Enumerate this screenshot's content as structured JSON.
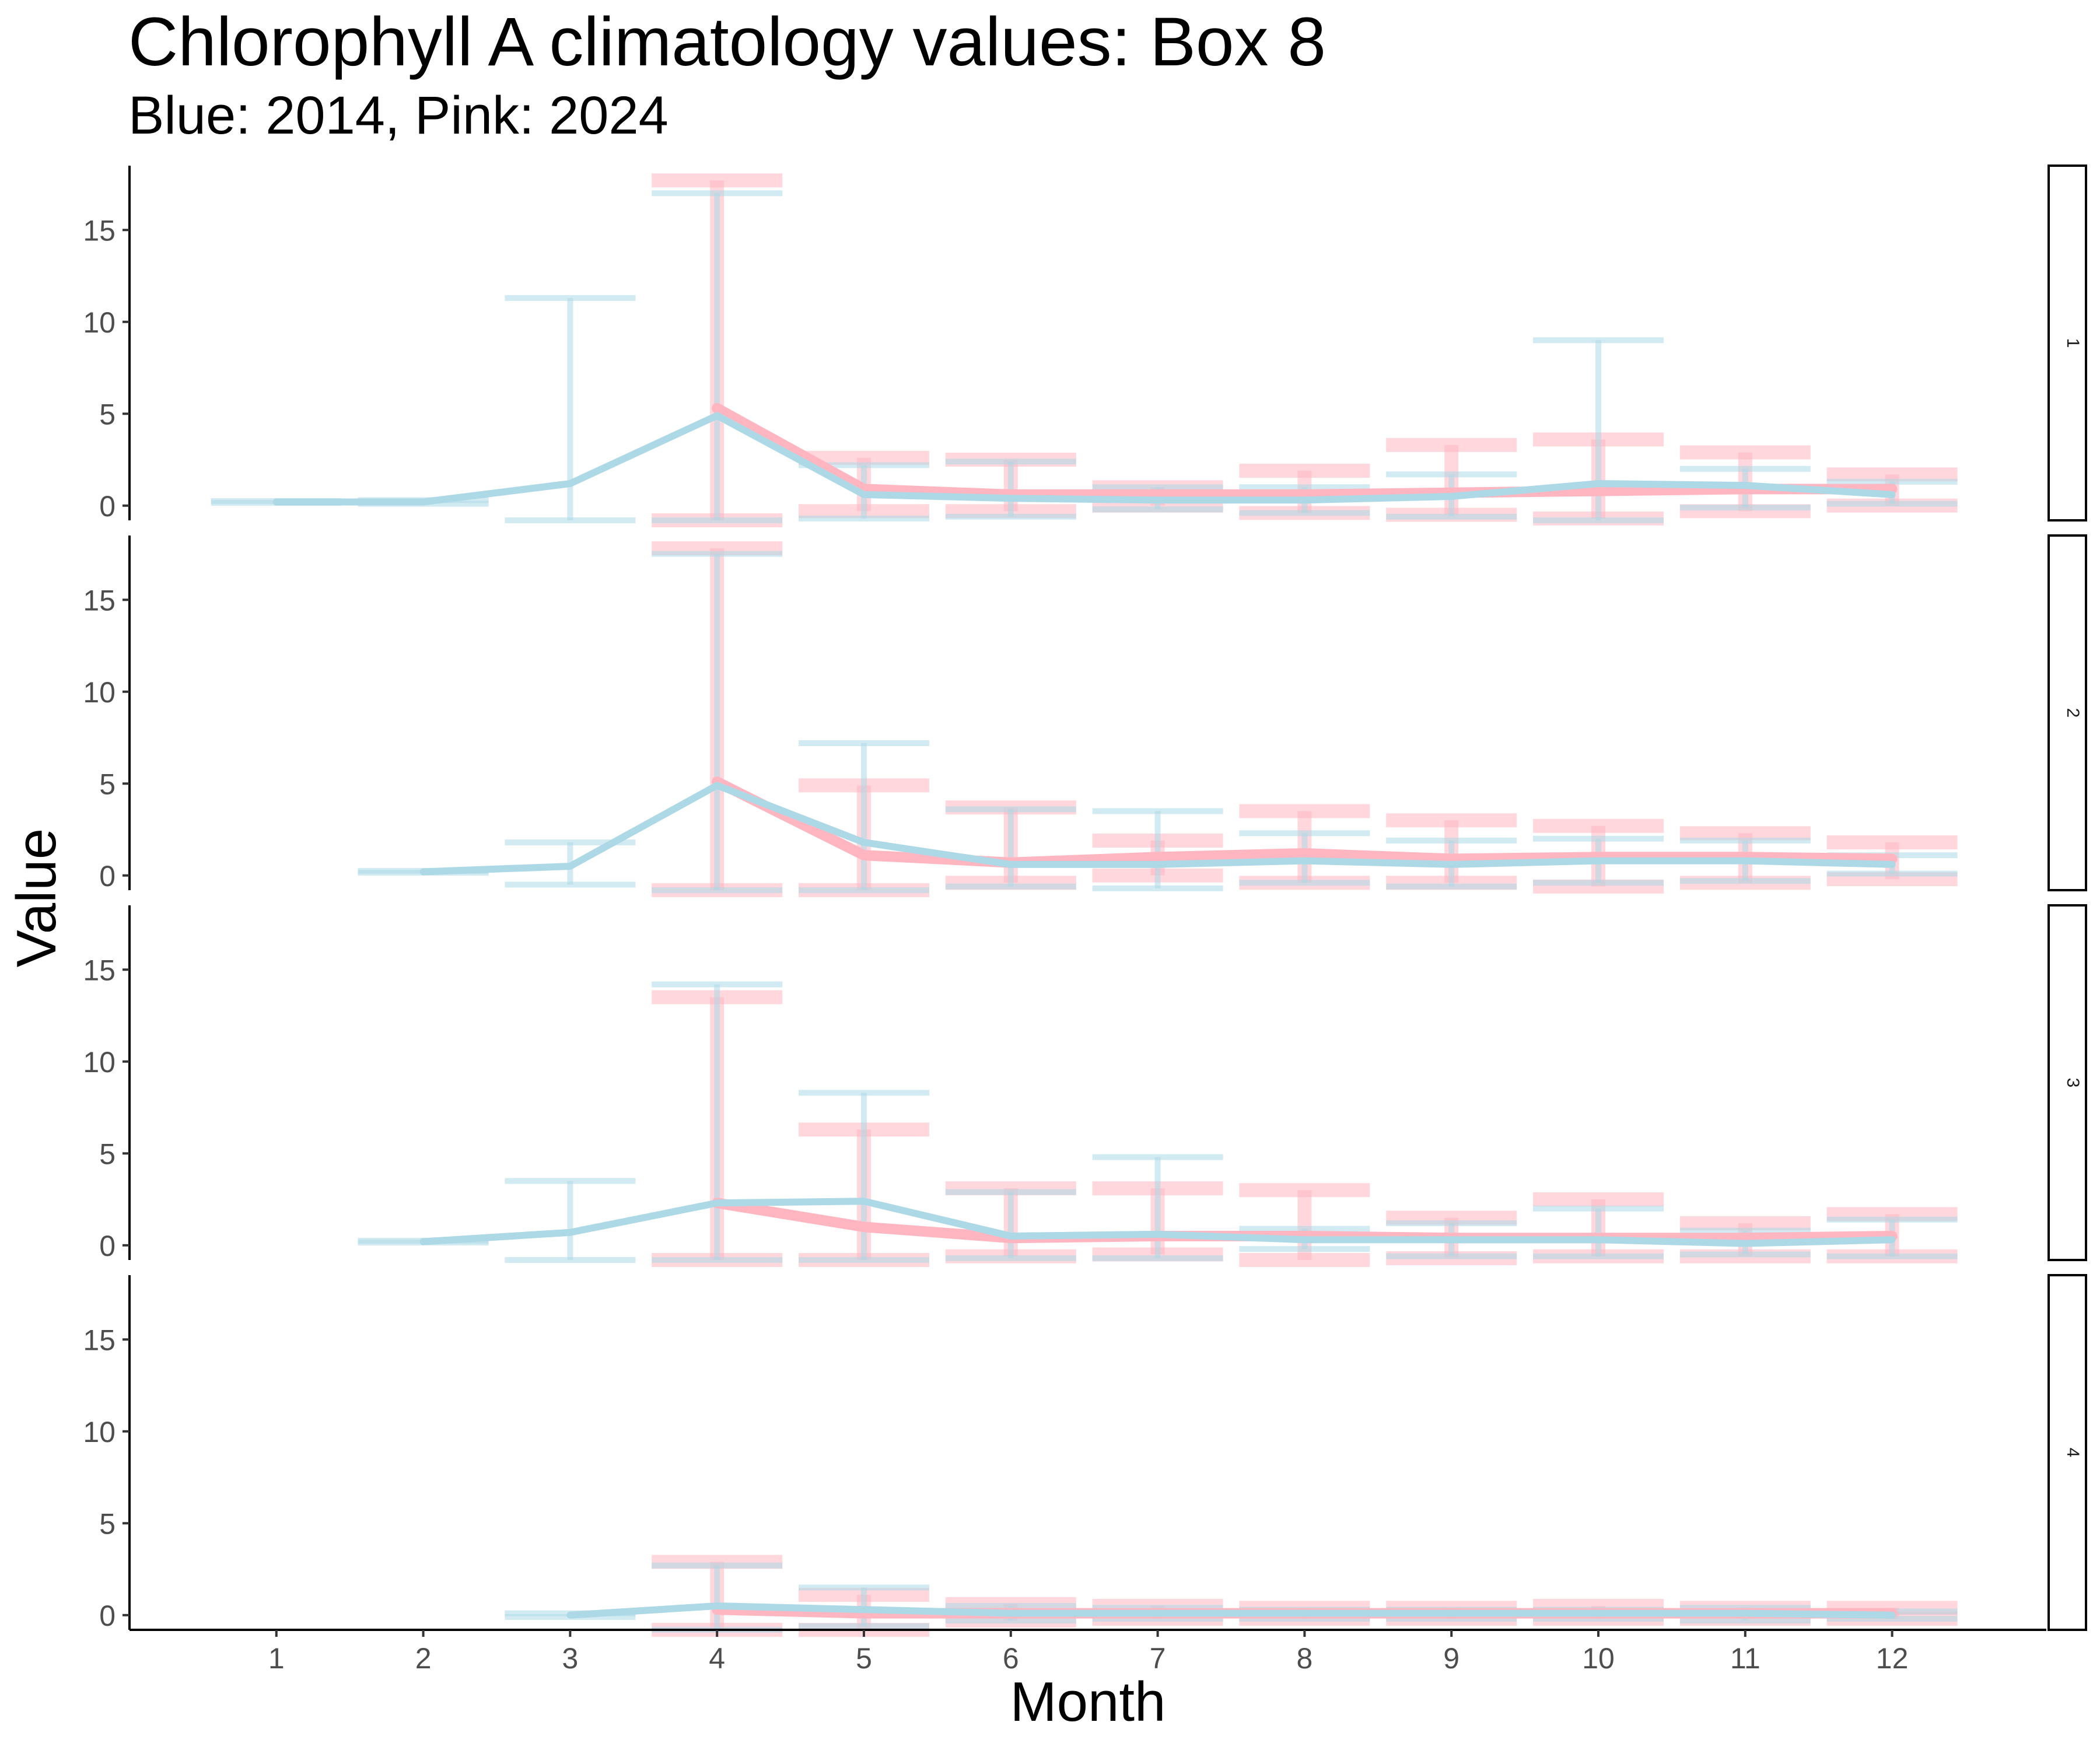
{
  "chart_data": {
    "type": "line",
    "title": "Chlorophyll A climatology values: Box 8",
    "subtitle": "Blue: 2014, Pink: 2024",
    "xlabel": "Month",
    "ylabel": "Value",
    "x": [
      1,
      2,
      3,
      4,
      5,
      6,
      7,
      8,
      9,
      10,
      11,
      12
    ],
    "x_ticks": [
      "1",
      "2",
      "3",
      "4",
      "5",
      "6",
      "7",
      "8",
      "9",
      "10",
      "11",
      "12"
    ],
    "y_ticks": [
      0,
      5,
      10,
      15
    ],
    "ylim": [
      -0.8,
      18.5
    ],
    "colors": {
      "2014": "#ADD8E6",
      "2024": "#FFB6C1"
    },
    "grid": false,
    "legend": "none",
    "facets": [
      {
        "label": "1",
        "series": [
          {
            "name": "2014",
            "points": [
              {
                "x": 1,
                "mean": 0.2,
                "low": 0.15,
                "high": 0.25
              },
              {
                "x": 2,
                "mean": 0.2,
                "low": 0.1,
                "high": 0.3
              },
              {
                "x": 3,
                "mean": 1.2,
                "low": -0.8,
                "high": 11.3
              },
              {
                "x": 4,
                "mean": 4.9,
                "low": -0.8,
                "high": 17.0
              },
              {
                "x": 5,
                "mean": 0.6,
                "low": -0.7,
                "high": 2.2
              },
              {
                "x": 6,
                "mean": 0.4,
                "low": -0.6,
                "high": 2.4
              },
              {
                "x": 7,
                "mean": 0.3,
                "low": -0.2,
                "high": 1.0
              },
              {
                "x": 8,
                "mean": 0.3,
                "low": -0.4,
                "high": 1.0
              },
              {
                "x": 9,
                "mean": 0.5,
                "low": -0.6,
                "high": 1.7
              },
              {
                "x": 10,
                "mean": 1.2,
                "low": -0.8,
                "high": 9.0
              },
              {
                "x": 11,
                "mean": 1.1,
                "low": -0.1,
                "high": 2.0
              },
              {
                "x": 12,
                "mean": 0.6,
                "low": 0.1,
                "high": 1.3
              }
            ]
          },
          {
            "name": "2024",
            "points": [
              {
                "x": 4,
                "mean": 5.3,
                "low": -0.8,
                "high": 17.7
              },
              {
                "x": 5,
                "mean": 0.9,
                "low": -0.3,
                "high": 2.6
              },
              {
                "x": 6,
                "mean": 0.6,
                "low": -0.3,
                "high": 2.5
              },
              {
                "x": 7,
                "mean": 0.6,
                "low": 0.0,
                "high": 1.0
              },
              {
                "x": 8,
                "mean": 0.6,
                "low": -0.4,
                "high": 1.9
              },
              {
                "x": 9,
                "mean": 0.7,
                "low": -0.5,
                "high": 3.3
              },
              {
                "x": 10,
                "mean": 0.8,
                "low": -0.7,
                "high": 3.6
              },
              {
                "x": 11,
                "mean": 0.9,
                "low": -0.3,
                "high": 2.9
              },
              {
                "x": 12,
                "mean": 0.9,
                "low": 0.0,
                "high": 1.7
              }
            ]
          }
        ]
      },
      {
        "label": "2",
        "series": [
          {
            "name": "2014",
            "points": [
              {
                "x": 2,
                "mean": 0.2,
                "low": 0.15,
                "high": 0.25
              },
              {
                "x": 3,
                "mean": 0.5,
                "low": -0.5,
                "high": 1.8
              },
              {
                "x": 4,
                "mean": 4.9,
                "low": -0.8,
                "high": 17.5
              },
              {
                "x": 5,
                "mean": 1.8,
                "low": -0.8,
                "high": 7.2
              },
              {
                "x": 6,
                "mean": 0.6,
                "low": -0.6,
                "high": 3.6
              },
              {
                "x": 7,
                "mean": 0.6,
                "low": -0.7,
                "high": 3.5
              },
              {
                "x": 8,
                "mean": 0.8,
                "low": -0.4,
                "high": 2.3
              },
              {
                "x": 9,
                "mean": 0.6,
                "low": -0.6,
                "high": 1.9
              },
              {
                "x": 10,
                "mean": 0.8,
                "low": -0.4,
                "high": 2.0
              },
              {
                "x": 11,
                "mean": 0.8,
                "low": -0.3,
                "high": 1.9
              },
              {
                "x": 12,
                "mean": 0.6,
                "low": 0.1,
                "high": 1.1
              }
            ]
          },
          {
            "name": "2024",
            "points": [
              {
                "x": 4,
                "mean": 5.1,
                "low": -0.8,
                "high": 17.8
              },
              {
                "x": 5,
                "mean": 1.1,
                "low": -0.8,
                "high": 4.9
              },
              {
                "x": 6,
                "mean": 0.7,
                "low": -0.4,
                "high": 3.7
              },
              {
                "x": 7,
                "mean": 1.0,
                "low": 0.0,
                "high": 1.9
              },
              {
                "x": 8,
                "mean": 1.2,
                "low": -0.4,
                "high": 3.5
              },
              {
                "x": 9,
                "mean": 0.9,
                "low": -0.4,
                "high": 3.0
              },
              {
                "x": 10,
                "mean": 1.0,
                "low": -0.6,
                "high": 2.7
              },
              {
                "x": 11,
                "mean": 1.0,
                "low": -0.4,
                "high": 2.3
              },
              {
                "x": 12,
                "mean": 0.9,
                "low": -0.2,
                "high": 1.8
              }
            ]
          }
        ]
      },
      {
        "label": "3",
        "series": [
          {
            "name": "2014",
            "points": [
              {
                "x": 2,
                "mean": 0.2,
                "low": 0.15,
                "high": 0.25
              },
              {
                "x": 3,
                "mean": 0.7,
                "low": -0.8,
                "high": 3.5
              },
              {
                "x": 4,
                "mean": 2.3,
                "low": -0.8,
                "high": 14.2
              },
              {
                "x": 5,
                "mean": 2.4,
                "low": -0.8,
                "high": 8.3
              },
              {
                "x": 6,
                "mean": 0.5,
                "low": -0.7,
                "high": 2.9
              },
              {
                "x": 7,
                "mean": 0.6,
                "low": -0.7,
                "high": 4.8
              },
              {
                "x": 8,
                "mean": 0.3,
                "low": -0.2,
                "high": 0.9
              },
              {
                "x": 9,
                "mean": 0.3,
                "low": -0.6,
                "high": 1.2
              },
              {
                "x": 10,
                "mean": 0.3,
                "low": -0.6,
                "high": 2.0
              },
              {
                "x": 11,
                "mean": 0.1,
                "low": -0.5,
                "high": 0.8
              },
              {
                "x": 12,
                "mean": 0.3,
                "low": -0.6,
                "high": 1.4
              }
            ]
          },
          {
            "name": "2024",
            "points": [
              {
                "x": 4,
                "mean": 2.3,
                "low": -0.8,
                "high": 13.5
              },
              {
                "x": 5,
                "mean": 1.0,
                "low": -0.8,
                "high": 6.3
              },
              {
                "x": 6,
                "mean": 0.4,
                "low": -0.6,
                "high": 3.1
              },
              {
                "x": 7,
                "mean": 0.5,
                "low": -0.5,
                "high": 3.1
              },
              {
                "x": 8,
                "mean": 0.5,
                "low": -0.8,
                "high": 3.0
              },
              {
                "x": 9,
                "mean": 0.4,
                "low": -0.7,
                "high": 1.5
              },
              {
                "x": 10,
                "mean": 0.4,
                "low": -0.6,
                "high": 2.5
              },
              {
                "x": 11,
                "mean": 0.4,
                "low": -0.6,
                "high": 1.2
              },
              {
                "x": 12,
                "mean": 0.5,
                "low": -0.6,
                "high": 1.7
              }
            ]
          }
        ]
      },
      {
        "label": "4",
        "series": [
          {
            "name": "2014",
            "points": [
              {
                "x": 3,
                "mean": 0.0,
                "low": -0.1,
                "high": 0.1
              },
              {
                "x": 4,
                "mean": 0.5,
                "low": -0.8,
                "high": 2.7
              },
              {
                "x": 5,
                "mean": 0.3,
                "low": -0.6,
                "high": 1.5
              },
              {
                "x": 6,
                "mean": 0.1,
                "low": -0.3,
                "high": 0.5
              },
              {
                "x": 7,
                "mean": 0.1,
                "low": -0.2,
                "high": 0.4
              },
              {
                "x": 8,
                "mean": 0.1,
                "low": -0.2,
                "high": 0.3
              },
              {
                "x": 9,
                "mean": 0.1,
                "low": -0.2,
                "high": 0.3
              },
              {
                "x": 10,
                "mean": 0.1,
                "low": -0.2,
                "high": 0.3
              },
              {
                "x": 11,
                "mean": 0.1,
                "low": -0.3,
                "high": 0.4
              },
              {
                "x": 12,
                "mean": 0.0,
                "low": -0.2,
                "high": 0.2
              }
            ]
          },
          {
            "name": "2024",
            "points": [
              {
                "x": 4,
                "mean": 0.3,
                "low": -0.8,
                "high": 2.9
              },
              {
                "x": 5,
                "mean": 0.1,
                "low": -0.8,
                "high": 1.1
              },
              {
                "x": 6,
                "mean": 0.1,
                "low": -0.3,
                "high": 0.6
              },
              {
                "x": 7,
                "mean": 0.1,
                "low": -0.2,
                "high": 0.5
              },
              {
                "x": 8,
                "mean": 0.1,
                "low": -0.2,
                "high": 0.4
              },
              {
                "x": 9,
                "mean": 0.1,
                "low": -0.2,
                "high": 0.4
              },
              {
                "x": 10,
                "mean": 0.1,
                "low": -0.2,
                "high": 0.5
              },
              {
                "x": 11,
                "mean": 0.1,
                "low": -0.2,
                "high": 0.4
              },
              {
                "x": 12,
                "mean": 0.1,
                "low": -0.2,
                "high": 0.4
              }
            ]
          }
        ]
      }
    ]
  }
}
